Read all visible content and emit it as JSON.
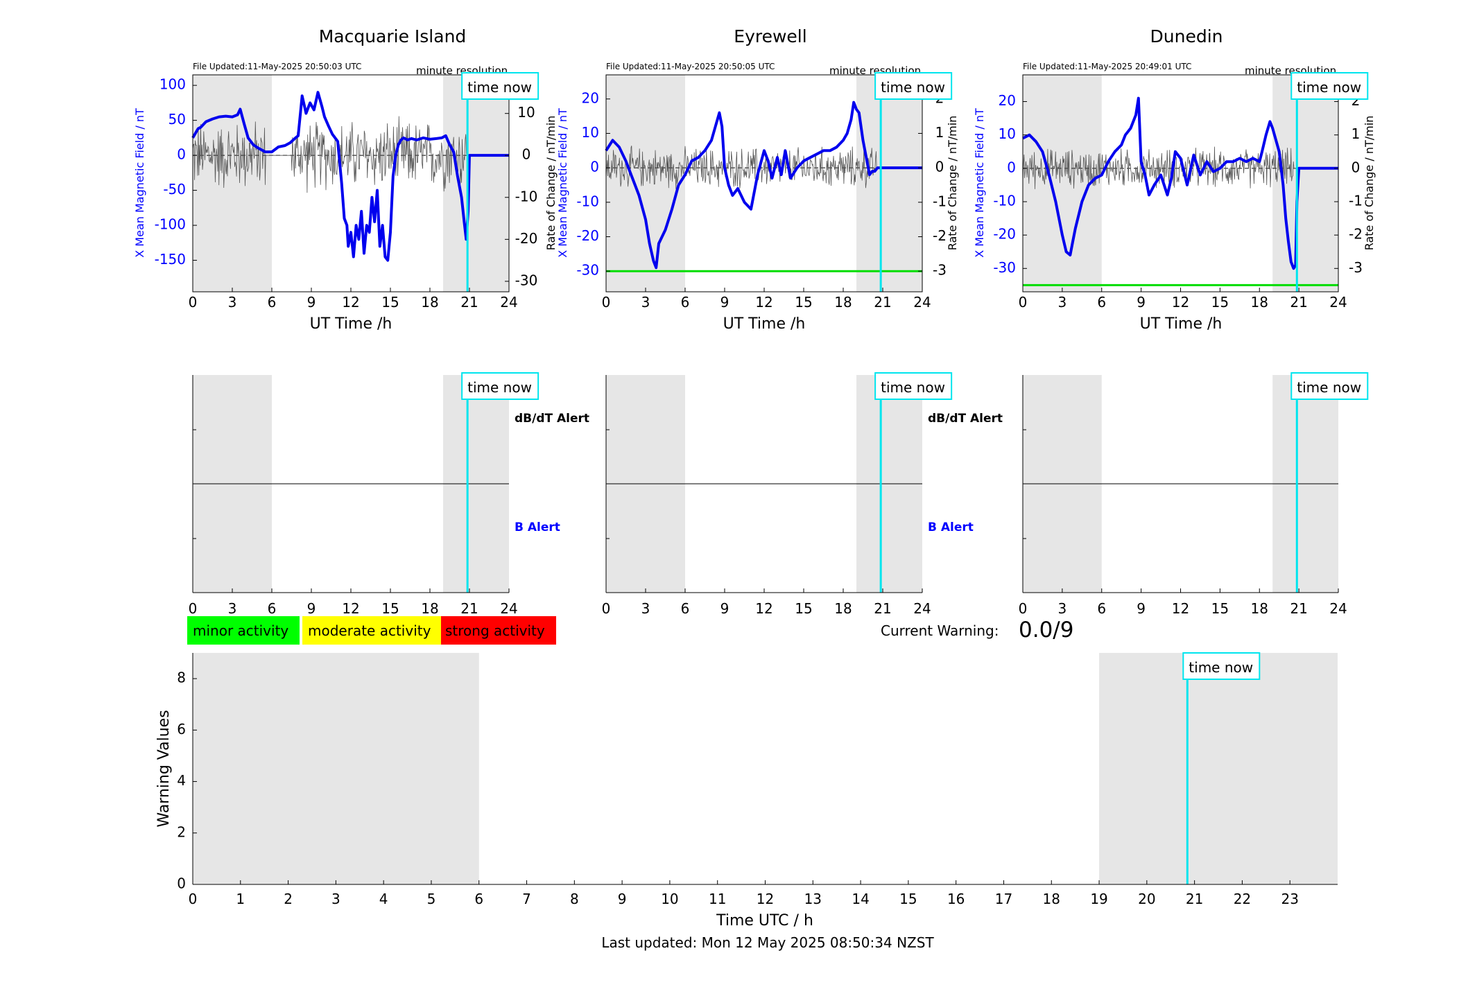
{
  "station_panels": [
    {
      "title": "Macquarie Island",
      "file_updated": "File Updated:11-May-2025 20:50:03 UTC",
      "resolution": "minute resolution",
      "time_now_label": "time now",
      "xlabel": "UT Time /h",
      "ylabel_left": "X Mean Magnetic Field / nT",
      "ylabel_right": "Rate of Change / nT/min",
      "left_ticks": [
        "100",
        "50",
        "0",
        "-50",
        "-100",
        "-150"
      ],
      "right_ticks": [
        "10",
        "0",
        "-10",
        "-20",
        "-30"
      ],
      "x_ticks": [
        "0",
        "3",
        "6",
        "9",
        "12",
        "15",
        "18",
        "21",
        "24"
      ],
      "alert_labels": {
        "dbdt": "dB/dT Alert",
        "b": "B Alert"
      }
    },
    {
      "title": "Eyrewell",
      "file_updated": "File Updated:11-May-2025 20:50:05 UTC",
      "resolution": "minute resolution",
      "time_now_label": "time now",
      "xlabel": "UT Time /h",
      "ylabel_left": "X Mean Magnetic Field / nT",
      "ylabel_right": "Rate of Change / nT/min",
      "left_ticks": [
        "20",
        "10",
        "0",
        "-10",
        "-20",
        "-30"
      ],
      "right_ticks": [
        "2",
        "1",
        "0",
        "-1",
        "-2",
        "-3"
      ],
      "x_ticks": [
        "0",
        "3",
        "6",
        "9",
        "12",
        "15",
        "18",
        "21",
        "24"
      ],
      "alert_labels": {
        "dbdt": "dB/dT Alert",
        "b": "B Alert"
      }
    },
    {
      "title": "Dunedin",
      "file_updated": "File Updated:11-May-2025 20:49:01 UTC",
      "resolution": "minute resolution",
      "time_now_label": "time now",
      "xlabel": "UT Time /h",
      "ylabel_left": "X Mean Magnetic Field / nT",
      "ylabel_right": "Rate of Change / nT/min",
      "left_ticks": [
        "20",
        "10",
        "0",
        "-10",
        "-20",
        "-30"
      ],
      "right_ticks": [
        "2",
        "1",
        "0",
        "-1",
        "-2",
        "-3"
      ],
      "x_ticks": [
        "0",
        "3",
        "6",
        "9",
        "12",
        "15",
        "18",
        "21",
        "24"
      ],
      "alert_labels": null
    }
  ],
  "alert_panels": [
    {
      "time_now_label": "time now",
      "x_ticks": [
        "0",
        "3",
        "6",
        "9",
        "12",
        "15",
        "18",
        "21",
        "24"
      ]
    },
    {
      "time_now_label": "time now",
      "x_ticks": [
        "0",
        "3",
        "6",
        "9",
        "12",
        "15",
        "18",
        "21",
        "24"
      ]
    },
    {
      "time_now_label": "time now",
      "x_ticks": [
        "0",
        "3",
        "6",
        "9",
        "12",
        "15",
        "18",
        "21",
        "24"
      ]
    }
  ],
  "legend": [
    {
      "label": "minor activity",
      "color": "#00ff00"
    },
    {
      "label": "moderate activity",
      "color": "#ffff00"
    },
    {
      "label": "strong activity",
      "color": "#ff0000"
    }
  ],
  "current_warning": {
    "label": "Current Warning:",
    "value": "0.0/9"
  },
  "warning_panel": {
    "ylabel": "Warning Values",
    "xlabel": "Time UTC / h",
    "time_now_label": "time now",
    "y_ticks": [
      "0",
      "2",
      "4",
      "6",
      "8"
    ],
    "x_ticks": [
      "0",
      "1",
      "2",
      "3",
      "4",
      "5",
      "6",
      "7",
      "8",
      "9",
      "10",
      "11",
      "12",
      "13",
      "14",
      "15",
      "16",
      "17",
      "18",
      "19",
      "20",
      "21",
      "22",
      "23"
    ]
  },
  "last_updated": "Last updated: Mon 12 May 2025 08:50:34 NZST",
  "colors": {
    "b_field": "#0000ee",
    "rate_of_change": "#555555",
    "time_now": "#00e5ee",
    "threshold": "#00dd00",
    "night_shade": "#e6e6e6",
    "axis_blue": "#0000ff"
  },
  "chart_data": [
    {
      "type": "line",
      "title": "Macquarie Island",
      "xlabel": "UT Time /h",
      "ylabel": "X Mean Magnetic Field / nT",
      "y2label": "Rate of Change / nT/min",
      "xlim": [
        0,
        24
      ],
      "ylim": [
        -195,
        115
      ],
      "y2lim": [
        -32.5,
        19.2
      ],
      "night_shading_h": [
        [
          0,
          6
        ],
        [
          19,
          24
        ]
      ],
      "time_now_h": 20.85,
      "threshold": null,
      "rate_amplitude": 7,
      "series": [
        {
          "name": "X Mean Magnetic Field",
          "axis": "left",
          "x": [
            0,
            0.4,
            0.6,
            1,
            1.5,
            2,
            2.5,
            3,
            3.4,
            3.6,
            3.9,
            4.2,
            4.6,
            5,
            5.5,
            6,
            6.5,
            7,
            7.4,
            7.8,
            8,
            8.3,
            8.6,
            8.9,
            9.2,
            9.5,
            9.8,
            10,
            10.3,
            10.6,
            11,
            11.3,
            11.5,
            11.7,
            11.8,
            12,
            12.2,
            12.4,
            12.6,
            12.8,
            13,
            13.2,
            13.4,
            13.6,
            13.8,
            14,
            14.2,
            14.4,
            14.6,
            14.8,
            15,
            15.2,
            15.4,
            15.6,
            15.8,
            16,
            16.3,
            16.6,
            17,
            17.5,
            18,
            18.5,
            18.9,
            19.2,
            19.5,
            19.8,
            20.1,
            20.4,
            20.6,
            20.75,
            20.9,
            21,
            22,
            24
          ],
          "y": [
            25,
            38,
            40,
            48,
            52,
            55,
            56,
            55,
            58,
            66,
            45,
            25,
            15,
            10,
            5,
            5,
            12,
            14,
            18,
            25,
            28,
            85,
            60,
            75,
            65,
            90,
            70,
            55,
            42,
            30,
            20,
            -40,
            -90,
            -100,
            -130,
            -110,
            -145,
            -100,
            -120,
            -80,
            -140,
            -100,
            -110,
            -60,
            -95,
            -50,
            -130,
            -100,
            -145,
            -150,
            -110,
            -30,
            0,
            15,
            22,
            25,
            22,
            24,
            22,
            25,
            23,
            24,
            25,
            28,
            15,
            5,
            -30,
            -60,
            -95,
            -120,
            -80,
            0,
            0,
            0
          ]
        },
        {
          "name": "Rate of Change",
          "axis": "right",
          "noisy_in_h": [
            [
              0,
              5.5
            ],
            [
              7.5,
              20.8
            ]
          ]
        }
      ]
    },
    {
      "type": "line",
      "title": "Eyrewell",
      "xlabel": "UT Time /h",
      "ylabel": "X Mean Magnetic Field / nT",
      "y2label": "Rate of Change / nT/min",
      "xlim": [
        0,
        24
      ],
      "ylim": [
        -36,
        27
      ],
      "y2lim": [
        -3.6,
        2.7
      ],
      "night_shading_h": [
        [
          0,
          6
        ],
        [
          19,
          24
        ]
      ],
      "time_now_h": 20.85,
      "threshold": -30,
      "rate_amplitude": 0.5,
      "series": [
        {
          "name": "X Mean Magnetic Field",
          "axis": "left",
          "x": [
            0,
            0.5,
            1,
            1.5,
            2,
            2.5,
            3,
            3.3,
            3.6,
            3.8,
            4,
            4.5,
            5,
            5.5,
            6,
            6.5,
            7,
            7.5,
            8,
            8.3,
            8.6,
            8.8,
            9,
            9.3,
            9.6,
            10,
            10.5,
            11,
            11.5,
            12,
            12.3,
            12.6,
            13,
            13.3,
            13.6,
            14,
            14.5,
            15,
            15.5,
            16,
            16.5,
            17,
            17.5,
            18,
            18.3,
            18.6,
            18.8,
            19,
            19.2,
            19.5,
            19.8,
            20,
            20.2,
            20.4,
            20.6,
            21,
            22,
            24
          ],
          "y": [
            5,
            8,
            6,
            2,
            -3,
            -8,
            -15,
            -22,
            -27,
            -29,
            -22,
            -18,
            -12,
            -5,
            -2,
            2,
            3,
            5,
            8,
            12,
            16,
            12,
            0,
            -5,
            -8,
            -6,
            -10,
            -12,
            -2,
            5,
            2,
            -3,
            3,
            -2,
            5,
            -3,
            0,
            2,
            3,
            4,
            5,
            5,
            6,
            8,
            10,
            14,
            19,
            17,
            16,
            8,
            2,
            -2,
            -1,
            -1,
            0,
            0,
            0,
            0
          ]
        },
        {
          "name": "Rate of Change",
          "axis": "right",
          "noisy_in_h": [
            [
              0,
              20.5
            ]
          ]
        }
      ]
    },
    {
      "type": "line",
      "title": "Dunedin",
      "xlabel": "UT Time /h",
      "ylabel": "X Mean Magnetic Field / nT",
      "y2label": "Rate of Change / nT/min",
      "xlim": [
        0,
        24
      ],
      "ylim": [
        -37,
        28
      ],
      "y2lim": [
        -3.7,
        2.8
      ],
      "night_shading_h": [
        [
          0,
          6
        ],
        [
          19,
          24
        ]
      ],
      "time_now_h": 20.85,
      "threshold": -35,
      "rate_amplitude": 0.5,
      "series": [
        {
          "name": "X Mean Magnetic Field",
          "axis": "left",
          "x": [
            0,
            0.5,
            1,
            1.5,
            2,
            2.5,
            3,
            3.3,
            3.6,
            3.8,
            4,
            4.5,
            5,
            5.5,
            6,
            6.5,
            7,
            7.5,
            7.8,
            8.2,
            8.6,
            8.8,
            9,
            9.3,
            9.6,
            10,
            10.5,
            11,
            11.3,
            11.6,
            12,
            12.5,
            13,
            13.5,
            14,
            14.5,
            15,
            15.5,
            16,
            16.5,
            17,
            17.5,
            18,
            18.2,
            18.5,
            18.8,
            19,
            19.5,
            19.8,
            20,
            20.2,
            20.4,
            20.6,
            20.75,
            20.85,
            21,
            22,
            24
          ],
          "y": [
            9,
            10,
            8,
            5,
            -2,
            -10,
            -20,
            -25,
            -26,
            -22,
            -18,
            -10,
            -5,
            -3,
            -2,
            2,
            5,
            7,
            10,
            12,
            16,
            21,
            2,
            -2,
            -8,
            -5,
            -2,
            -8,
            -3,
            5,
            3,
            -5,
            4,
            -2,
            2,
            -1,
            0,
            2,
            2,
            3,
            2,
            3,
            2,
            5,
            10,
            14,
            12,
            5,
            -5,
            -15,
            -22,
            -28,
            -30,
            -29,
            -10,
            0,
            0,
            0
          ]
        },
        {
          "name": "Rate of Change",
          "axis": "right",
          "noisy_in_h": [
            [
              0,
              20.6
            ]
          ]
        }
      ]
    },
    {
      "type": "line",
      "title": "",
      "xlabel": "Time UTC / h",
      "ylabel": "Warning Values",
      "xlim": [
        0,
        24
      ],
      "ylim": [
        0,
        9
      ],
      "night_shading_h": [
        [
          0,
          6
        ],
        [
          19,
          24
        ]
      ],
      "time_now_h": 20.85,
      "series": []
    }
  ]
}
